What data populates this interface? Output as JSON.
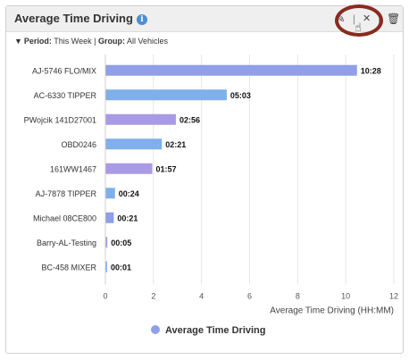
{
  "widget": {
    "title": "Average Time Driving",
    "info_icon": "info-icon",
    "tools": {
      "edit_icon": "edit-icon",
      "collapse_icon": "collapse-icon",
      "trash_icon": "trash-icon",
      "separator": "|"
    }
  },
  "filters": {
    "period_label": "Period:",
    "period_value": "This Week",
    "separator": "|",
    "group_label": "Group:",
    "group_value": "All Vehicles"
  },
  "chart_data": {
    "type": "bar",
    "orientation": "horizontal",
    "categories": [
      "AJ-5746 FLO/MIX",
      "AC-6330 TIPPER",
      "PWojcik 141D27001",
      "OBD0246",
      "161WW1467",
      "AJ-7878 TIPPER",
      "Michael 08CE800",
      "Barry-AL-Testing",
      "BC-458 MIXER"
    ],
    "values": [
      10.467,
      5.05,
      2.933,
      2.35,
      1.95,
      0.4,
      0.35,
      0.083,
      0.017
    ],
    "data_labels": [
      "10:28",
      "05:03",
      "02:56",
      "02:21",
      "01:57",
      "00:24",
      "00:21",
      "00:05",
      "00:01"
    ],
    "bar_colors": [
      "#8f9fe8",
      "#7fb0ec",
      "#a99ae6",
      "#7fb0ec",
      "#a99ae6",
      "#7fb0ec",
      "#8f9fe8",
      "#a99ae6",
      "#7fb0ec"
    ],
    "xlabel": "Average Time Driving (HH:MM)",
    "xlim": [
      0,
      12
    ],
    "xticks": [
      "0",
      "2",
      "4",
      "6",
      "8",
      "10",
      "12"
    ],
    "xtick_values": [
      0,
      2,
      4,
      6,
      8,
      10,
      12
    ],
    "grid": true,
    "legend": {
      "position": "bottom-center",
      "entries": [
        "Average Time Driving"
      ],
      "color": "#8f9fe8"
    }
  }
}
